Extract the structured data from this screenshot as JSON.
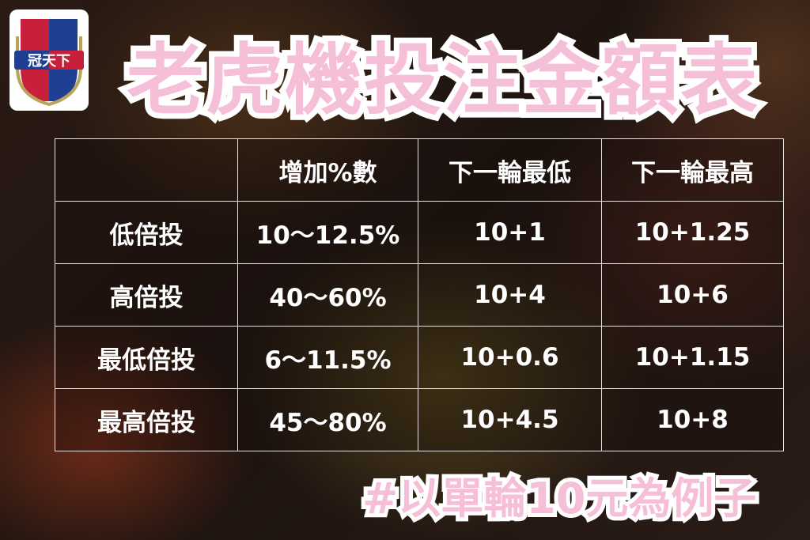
{
  "logo": {
    "text": "冠天下"
  },
  "title": "老虎機投注金額表",
  "table": {
    "headers": [
      "",
      "增加%數",
      "下一輪最低",
      "下一輪最高"
    ],
    "rows": [
      [
        "低倍投",
        "10～12.5%",
        "10+1",
        "10+1.25"
      ],
      [
        "高倍投",
        "40～60%",
        "10+4",
        "10+6"
      ],
      [
        "最低倍投",
        "6～11.5%",
        "10+0.6",
        "10+1.15"
      ],
      [
        "最高倍投",
        "45～80%",
        "10+4.5",
        "10+8"
      ]
    ]
  },
  "footnote": "#以單輪10元為例子",
  "colors": {
    "title": "#f6bfd8",
    "outline": "#ffffff",
    "logo_red": "#c8203a",
    "logo_blue": "#1f3f93",
    "logo_gold": "#b9a45a"
  }
}
